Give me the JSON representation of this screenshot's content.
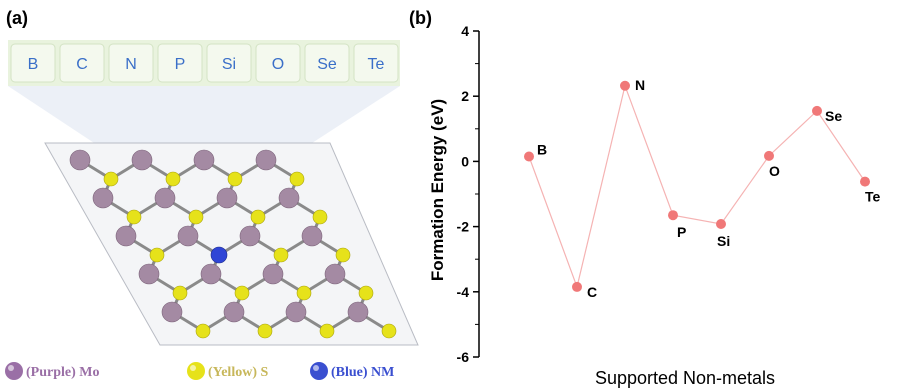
{
  "panel_a": {
    "label": "(a)",
    "elements": [
      "B",
      "C",
      "N",
      "P",
      "Si",
      "O",
      "Se",
      "Te"
    ],
    "legend": [
      {
        "text": "(Purple) Mo",
        "color": "#9a6fa6"
      },
      {
        "text": "(Yellow) S",
        "color": "#c7b75a"
      },
      {
        "text": "(Blue) NM",
        "color": "#3a4fd0"
      }
    ],
    "colors": {
      "mo": "#a48aa3",
      "s": "#e6e21a",
      "nm": "#2f45d6",
      "bond": "#8a8a8a"
    }
  },
  "chart_data": {
    "type": "line",
    "panel_label": "(b)",
    "title": "",
    "xlabel": "Supported Non-metals",
    "ylabel": "Formation Energy (eV)",
    "ylim": [
      -6,
      4
    ],
    "yticks": [
      4,
      2,
      0,
      -2,
      -4,
      -6
    ],
    "categories": [
      "B",
      "C",
      "N",
      "P",
      "Si",
      "O",
      "Se",
      "Te"
    ],
    "values": [
      0.15,
      -3.85,
      2.32,
      -1.65,
      -1.92,
      0.17,
      1.55,
      -0.62
    ],
    "marker_color": "#f07878",
    "line_color": "#f5b3b3"
  }
}
